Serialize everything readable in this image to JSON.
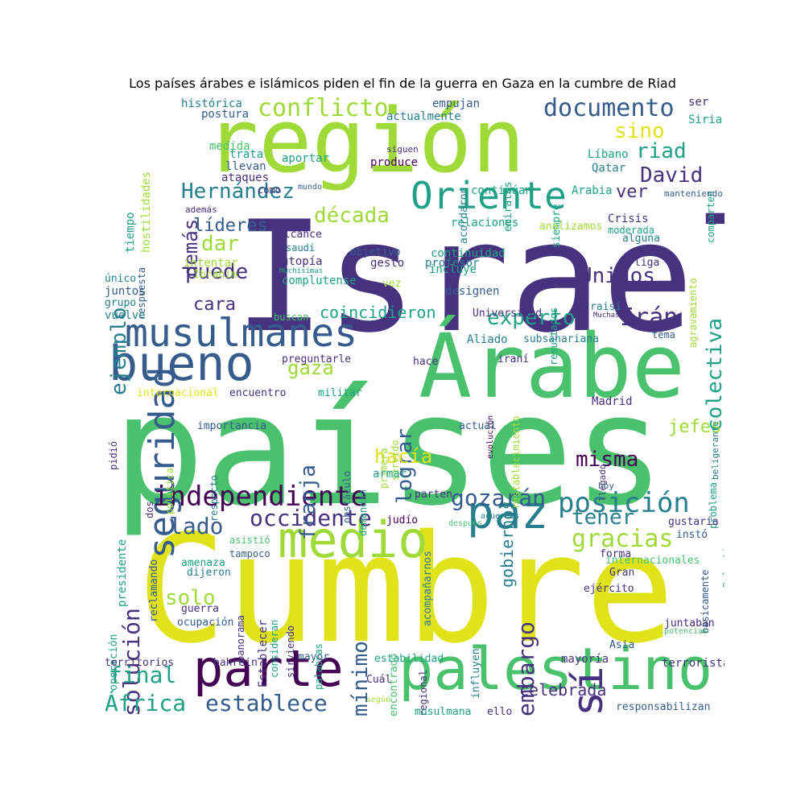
{
  "title": "Los países árabes e islámicos piden el fin de la guerra en Gaza en la cumbre de Riad",
  "palette": [
    "#440154",
    "#46327e",
    "#365c8d",
    "#277f8e",
    "#1fa187",
    "#4ac16d",
    "#a0da39",
    "#dfe318"
  ],
  "words": {
    "w0": "Israel",
    "w1": "países",
    "w2": "Cumbre",
    "w3": "región",
    "w4": "Árabe",
    "w5": "palestino",
    "w6": "musulmanes",
    "w7": "bueno",
    "w8": "parte",
    "w9": "medio",
    "w10": "Oriente",
    "w11": "seguridad",
    "w12": "paz",
    "w13": "independiente",
    "w14": "sí",
    "w15": "conflicto",
    "w16": "documento",
    "w17": "posición",
    "w18": "gracias",
    "w19": "solución",
    "w20": "David",
    "w21": "Hernández",
    "w22": "década",
    "w23": "Unidos",
    "w24": "ejemplo",
    "w25": "colectiva",
    "w26": "occidente",
    "w27": "África",
    "w28": "establece",
    "w29": "final",
    "w30": "embargo",
    "w31": "gozarán",
    "w32": "tener",
    "w33": "misma",
    "w34": "lograr",
    "w35": "franja",
    "w36": "hacía",
    "w37": "gaza",
    "w38": "experto",
    "w39": "Irán",
    "w40": "sino",
    "w41": "riad",
    "w42": "ver",
    "w43": "demás",
    "w44": "puede",
    "w45": "dar",
    "w46": "cara",
    "w47": "líderes",
    "w48": "coincidieron",
    "w49": "lado",
    "w50": "solo",
    "w51": "mínimo",
    "w52": "celebrada",
    "w53": "jefes",
    "w54": "gobiernos",
    "w55": "histórica",
    "w56": "postura",
    "w57": "actualmente",
    "w58": "empujan",
    "w59": "ser",
    "w60": "Siria",
    "w61": "tiempo",
    "w62": "hostilidades",
    "w63": "medida",
    "w64": "trata",
    "w65": "llevan",
    "w66": "ataques",
    "w67": "cómo",
    "w68": "mundo",
    "w69": "aportar",
    "w70": "produce",
    "w71": "siguen",
    "w72": "acordaron",
    "w73": "emiratos",
    "w74": "siempre",
    "w75": "Líbano",
    "w76": "Qatar",
    "w77": "comparten",
    "w78": "manteniendo",
    "w79": "continúan",
    "w80": "Arabia",
    "w81": "además",
    "w82": "respuesta",
    "w83": "relaciones",
    "w84": "analizamos",
    "w85": "Crisis",
    "w86": "moderada",
    "w87": "alguna",
    "w88": "alcance",
    "w89": "saudí",
    "w90": "utopía",
    "w91": "Muchísimas",
    "w92": "objetivo",
    "w93": "gesto",
    "w94": "profesor",
    "w95": "continuidad",
    "w96": "incluye",
    "w97": "designen",
    "w98": "resultados",
    "w99": "agravamiento",
    "w100": "liga",
    "w101": "intentar",
    "w102": "Ibrahim",
    "w103": "único",
    "w104": "juntos",
    "w105": "grupo",
    "w106": "vuelve",
    "w107": "complutense",
    "w108": "vez",
    "w109": "Universidad",
    "w110": "raisi",
    "w111": "Muchas",
    "w112": "tema",
    "w113": "buscan",
    "w114": "Aliado",
    "w115": "subsahariana",
    "w116": "preguntarle",
    "w117": "hace",
    "w118": "iraní",
    "w119": "servido",
    "w120": "evolución",
    "w121": "beligerante",
    "w122": "internacional",
    "w123": "encuentro",
    "w124": "militar",
    "w125": "primera",
    "w126": "restablecimiento",
    "w127": "pidió",
    "w128": "Madrid",
    "w129": "importancia",
    "w130": "actual",
    "w131": "llegado",
    "w132": "problema",
    "w133": "dos",
    "w134": "política",
    "w135": "respecto",
    "w136": "obstáculo",
    "w137": "demandan",
    "w138": "armar",
    "w139": "hoy",
    "w140": "presidente",
    "w141": "parten",
    "w142": "acuerdos",
    "w143": "Palestina",
    "w144": "reclamando",
    "w145": "judío",
    "w146": "acompañarnos",
    "w147": "después",
    "w148": "gustaría",
    "w149": "instó",
    "w150": "asistió",
    "w151": "forma",
    "w152": "internacionales",
    "w153": "amenaza",
    "w154": "tampoco",
    "w155": "básicamente",
    "w156": "dijeron",
    "w157": "Gran",
    "w158": "operación",
    "w159": "panorama",
    "w160": "Establecer",
    "w161": "consideran",
    "w162": "palabras",
    "w163": "encontrado",
    "w164": "influyen",
    "w165": "ejército",
    "w166": "guerra",
    "w167": "sirviendo",
    "w168": "ocupación",
    "w169": "regional",
    "w170": "juntaban",
    "w171": "potencias",
    "w172": "Asia",
    "w173": "mayor",
    "w174": "territorios",
    "w175": "bahrein",
    "w176": "estabilidad",
    "w177": "mayoría",
    "w178": "terrorista",
    "w179": "Cuál",
    "w180": "musulmana",
    "w181": "ello",
    "w182": "responsabilizan",
    "w183": "según"
  }
}
